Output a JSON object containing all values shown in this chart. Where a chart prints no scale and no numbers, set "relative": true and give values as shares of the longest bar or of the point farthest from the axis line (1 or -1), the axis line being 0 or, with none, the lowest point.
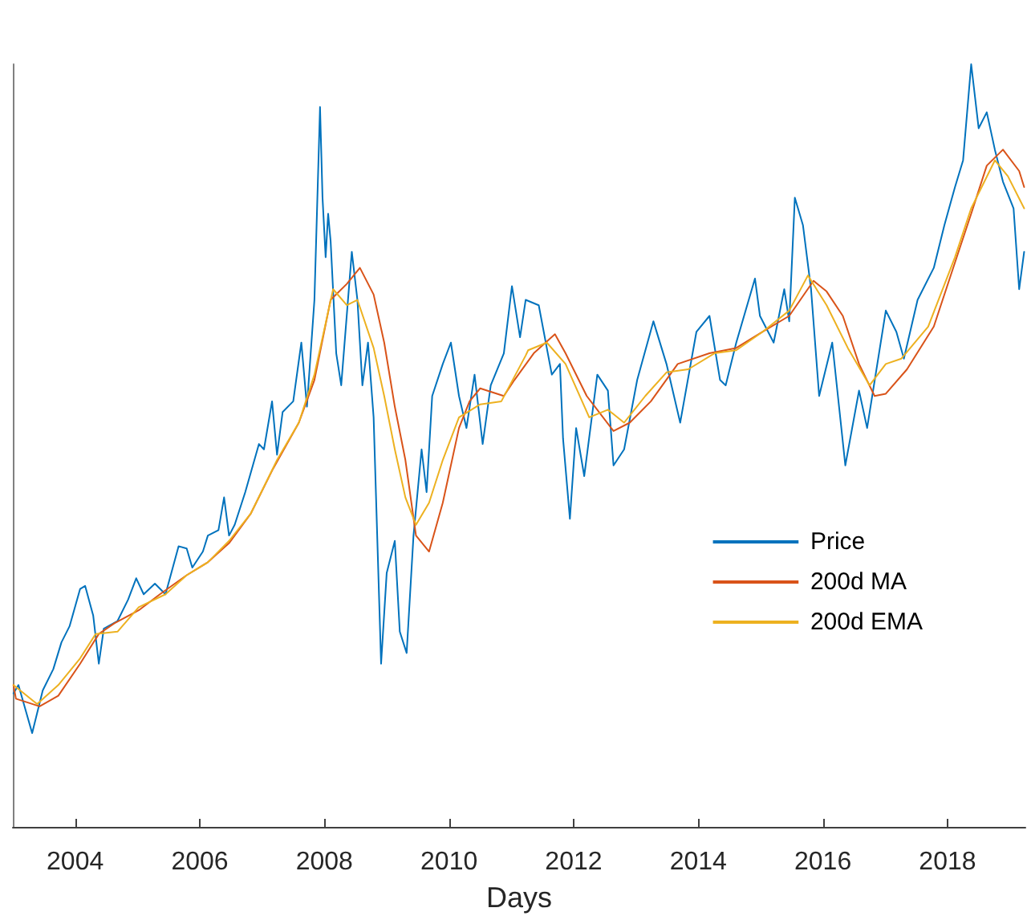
{
  "chart_data": {
    "type": "line",
    "xlabel": "Days",
    "relative": true,
    "xlim": [
      2003,
      2019.25
    ],
    "xticks": [
      2004,
      2006,
      2008,
      2010,
      2012,
      2014,
      2016,
      2018
    ],
    "grid": false,
    "legend": "right",
    "marker": "none",
    "line_style": "solid",
    "series": [
      {
        "name": "Price",
        "color": "#0072bd",
        "x": [
          2003.01,
          2003.09,
          2003.31,
          2003.48,
          2003.65,
          2003.78,
          2003.91,
          2004.08,
          2004.16,
          2004.29,
          2004.38,
          2004.46,
          2004.68,
          2004.85,
          2004.98,
          2005.1,
          2005.28,
          2005.45,
          2005.66,
          2005.79,
          2005.88,
          2006.05,
          2006.13,
          2006.3,
          2006.39,
          2006.47,
          2006.56,
          2006.73,
          2006.95,
          2007.03,
          2007.16,
          2007.24,
          2007.33,
          2007.5,
          2007.63,
          2007.72,
          2007.84,
          2007.93,
          2007.97,
          2008.02,
          2008.06,
          2008.1,
          2008.19,
          2008.27,
          2008.44,
          2008.53,
          2008.61,
          2008.7,
          2008.79,
          2008.91,
          2009.0,
          2009.13,
          2009.21,
          2009.32,
          2009.43,
          2009.56,
          2009.64,
          2009.73,
          2009.9,
          2010.03,
          2010.16,
          2010.28,
          2010.41,
          2010.54,
          2010.67,
          2010.88,
          2011.01,
          2011.14,
          2011.23,
          2011.44,
          2011.65,
          2011.78,
          2011.83,
          2011.94,
          2012.04,
          2012.17,
          2012.38,
          2012.55,
          2012.64,
          2012.81,
          2013.02,
          2013.28,
          2013.49,
          2013.71,
          2013.97,
          2014.18,
          2014.35,
          2014.44,
          2014.61,
          2014.91,
          2014.99,
          2015.21,
          2015.38,
          2015.46,
          2015.55,
          2015.68,
          2015.81,
          2015.94,
          2016.15,
          2016.36,
          2016.58,
          2016.71,
          2017.01,
          2017.18,
          2017.3,
          2017.52,
          2017.78,
          2017.95,
          2018.12,
          2018.25,
          2018.38,
          2018.5,
          2018.63,
          2018.76,
          2018.89,
          2019.06,
          2019.15,
          2019.23
        ],
        "values": [
          0.175,
          0.186,
          0.123,
          0.179,
          0.207,
          0.242,
          0.263,
          0.312,
          0.316,
          0.277,
          0.214,
          0.26,
          0.27,
          0.298,
          0.326,
          0.305,
          0.319,
          0.305,
          0.368,
          0.365,
          0.34,
          0.361,
          0.382,
          0.389,
          0.432,
          0.382,
          0.396,
          0.439,
          0.502,
          0.495,
          0.558,
          0.488,
          0.544,
          0.558,
          0.635,
          0.551,
          0.691,
          0.944,
          0.825,
          0.747,
          0.804,
          0.768,
          0.621,
          0.579,
          0.754,
          0.691,
          0.579,
          0.635,
          0.537,
          0.214,
          0.333,
          0.375,
          0.256,
          0.228,
          0.382,
          0.495,
          0.439,
          0.565,
          0.607,
          0.635,
          0.565,
          0.523,
          0.593,
          0.502,
          0.579,
          0.621,
          0.709,
          0.642,
          0.691,
          0.684,
          0.593,
          0.607,
          0.509,
          0.404,
          0.523,
          0.46,
          0.593,
          0.572,
          0.474,
          0.495,
          0.586,
          0.663,
          0.607,
          0.53,
          0.649,
          0.67,
          0.586,
          0.579,
          0.635,
          0.719,
          0.67,
          0.635,
          0.705,
          0.663,
          0.825,
          0.789,
          0.705,
          0.565,
          0.635,
          0.474,
          0.572,
          0.523,
          0.677,
          0.649,
          0.614,
          0.691,
          0.733,
          0.789,
          0.839,
          0.874,
          1,
          0.916,
          0.937,
          0.888,
          0.846,
          0.811,
          0.705,
          0.754
        ]
      },
      {
        "name": "200d MA",
        "color": "#d95319",
        "x": [
          2003.01,
          2003.05,
          2003.43,
          2003.73,
          2004.08,
          2004.38,
          2004.63,
          2005.02,
          2005.36,
          2005.79,
          2006.13,
          2006.47,
          2006.82,
          2007.16,
          2007.59,
          2007.84,
          2008.1,
          2008.36,
          2008.57,
          2008.79,
          2008.96,
          2009.13,
          2009.3,
          2009.47,
          2009.68,
          2009.9,
          2010.16,
          2010.33,
          2010.5,
          2010.88,
          2011.05,
          2011.36,
          2011.7,
          2011.87,
          2012.21,
          2012.64,
          2012.9,
          2013.24,
          2013.67,
          2014.18,
          2014.61,
          2015.03,
          2015.46,
          2015.85,
          2016.06,
          2016.32,
          2016.58,
          2016.83,
          2017.01,
          2017.35,
          2017.78,
          2018.12,
          2018.38,
          2018.63,
          2018.89,
          2019.15,
          2019.23
        ],
        "values": [
          0.186,
          0.168,
          0.158,
          0.172,
          0.214,
          0.253,
          0.267,
          0.284,
          0.305,
          0.33,
          0.347,
          0.372,
          0.411,
          0.467,
          0.53,
          0.586,
          0.691,
          0.712,
          0.733,
          0.698,
          0.635,
          0.551,
          0.481,
          0.382,
          0.361,
          0.425,
          0.523,
          0.558,
          0.575,
          0.565,
          0.586,
          0.621,
          0.646,
          0.621,
          0.565,
          0.519,
          0.53,
          0.558,
          0.607,
          0.621,
          0.628,
          0.649,
          0.67,
          0.716,
          0.702,
          0.67,
          0.607,
          0.565,
          0.568,
          0.6,
          0.656,
          0.74,
          0.804,
          0.867,
          0.888,
          0.86,
          0.839
        ]
      },
      {
        "name": "200d EMA",
        "color": "#edb120",
        "x": [
          2003.01,
          2003.39,
          2003.73,
          2004.08,
          2004.33,
          2004.68,
          2005.02,
          2005.45,
          2005.79,
          2006.13,
          2006.47,
          2006.82,
          2007.24,
          2007.59,
          2007.84,
          2008.14,
          2008.36,
          2008.53,
          2008.79,
          2008.96,
          2009.13,
          2009.3,
          2009.47,
          2009.68,
          2009.9,
          2010.16,
          2010.5,
          2010.84,
          2011.23,
          2011.27,
          2011.57,
          2011.87,
          2012.25,
          2012.55,
          2012.81,
          2013.15,
          2013.49,
          2013.84,
          2014.26,
          2014.61,
          2015.03,
          2015.46,
          2015.76,
          2016.06,
          2016.4,
          2016.75,
          2017.01,
          2017.26,
          2017.69,
          2018.12,
          2018.38,
          2018.76,
          2018.97,
          2019.23
        ],
        "values": [
          0.186,
          0.161,
          0.186,
          0.221,
          0.253,
          0.256,
          0.288,
          0.305,
          0.33,
          0.347,
          0.375,
          0.411,
          0.481,
          0.53,
          0.593,
          0.705,
          0.684,
          0.691,
          0.628,
          0.565,
          0.495,
          0.432,
          0.396,
          0.425,
          0.481,
          0.537,
          0.554,
          0.558,
          0.618,
          0.625,
          0.635,
          0.607,
          0.537,
          0.547,
          0.53,
          0.565,
          0.596,
          0.6,
          0.621,
          0.625,
          0.649,
          0.677,
          0.723,
          0.684,
          0.628,
          0.579,
          0.607,
          0.614,
          0.656,
          0.747,
          0.811,
          0.874,
          0.853,
          0.811
        ]
      }
    ]
  }
}
